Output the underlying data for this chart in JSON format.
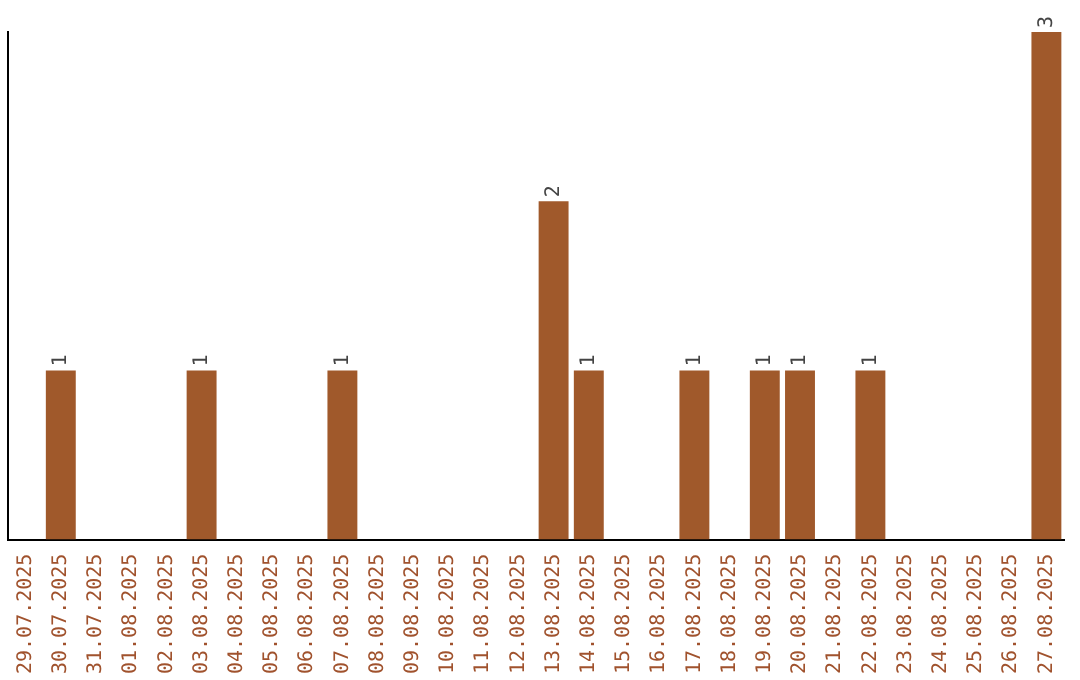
{
  "chart_data": {
    "type": "bar",
    "categories": [
      "29.07.2025",
      "30.07.2025",
      "31.07.2025",
      "01.08.2025",
      "02.08.2025",
      "03.08.2025",
      "04.08.2025",
      "05.08.2025",
      "06.08.2025",
      "07.08.2025",
      "08.08.2025",
      "09.08.2025",
      "10.08.2025",
      "11.08.2025",
      "12.08.2025",
      "13.08.2025",
      "14.08.2025",
      "15.08.2025",
      "16.08.2025",
      "17.08.2025",
      "18.08.2025",
      "19.08.2025",
      "20.08.2025",
      "21.08.2025",
      "22.08.2025",
      "23.08.2025",
      "24.08.2025",
      "25.08.2025",
      "26.08.2025",
      "27.08.2025"
    ],
    "values": [
      0,
      1,
      0,
      0,
      0,
      1,
      0,
      0,
      0,
      1,
      0,
      0,
      0,
      0,
      0,
      2,
      1,
      0,
      0,
      1,
      0,
      1,
      1,
      0,
      1,
      0,
      0,
      0,
      0,
      3
    ],
    "value_labels": [
      null,
      "1",
      null,
      null,
      null,
      "1",
      null,
      null,
      null,
      "1",
      null,
      null,
      null,
      null,
      null,
      "2",
      "1",
      null,
      null,
      "1",
      null,
      "1",
      "1",
      null,
      "1",
      null,
      null,
      null,
      null,
      "3"
    ],
    "color": "#a0592b",
    "ylim": [
      0,
      3
    ],
    "tick_labels": "x",
    "grid": false,
    "legend": false
  }
}
